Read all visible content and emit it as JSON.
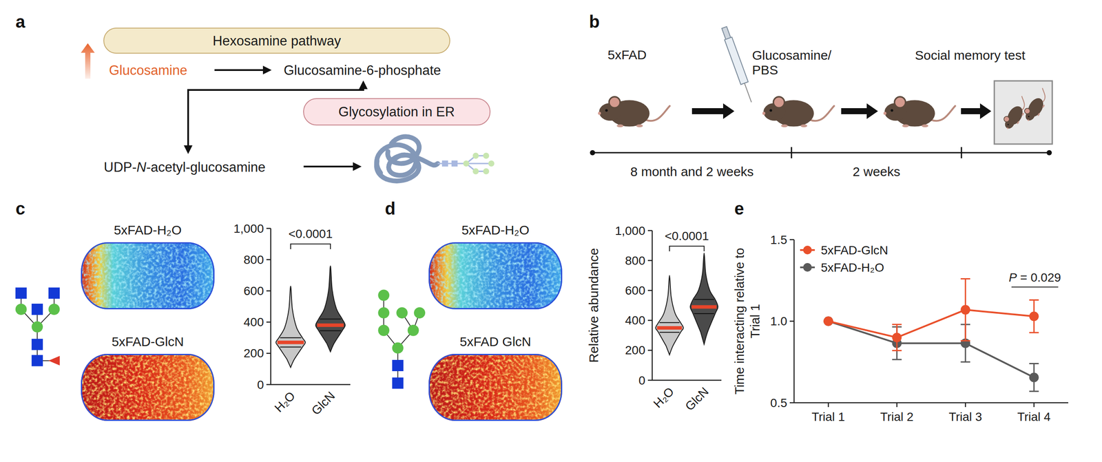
{
  "panels": {
    "a": {
      "letter": "a",
      "pathway": "Hexosamine pathway",
      "glucosamine": "Glucosamine",
      "glucosamine_6_phosphate": "Glucosamine-6-phosphate",
      "glycosylation": "Glycosylation in ER",
      "udp_glcnac": "UDP-N-acetyl-glucosamine"
    },
    "b": {
      "letter": "b",
      "mouse": "5xFAD",
      "treatment": "Glucosamine/PBS",
      "test": "Social memory test",
      "timeline": [
        "8 month and 2 weeks",
        "2 weeks"
      ]
    }
  },
  "chart_data": [
    {
      "type": "violin",
      "panel": "c",
      "image_labels": [
        "5xFAD-H₂O",
        "5xFAD-GlcN"
      ],
      "categories": [
        "H₂O",
        "GlcN"
      ],
      "min": [
        110,
        210
      ],
      "q1": [
        240,
        345
      ],
      "median": [
        270,
        380
      ],
      "q3": [
        300,
        420
      ],
      "max": [
        630,
        760
      ],
      "colors": [
        "#c8c8c8",
        "#4a4a4a"
      ],
      "ylim": [
        0,
        1000
      ],
      "yticks": [
        0,
        200,
        400,
        600,
        800,
        {
          "value": 1000,
          "label": "1,000"
        }
      ],
      "annotation": "<0.0001"
    },
    {
      "type": "violin",
      "panel": "d",
      "image_labels": [
        "5xFAD-H₂O",
        "5xFAD GlcN"
      ],
      "categories": [
        "H₂O",
        "GlcN"
      ],
      "min": [
        170,
        240
      ],
      "q1": [
        320,
        445
      ],
      "median": [
        350,
        490
      ],
      "q3": [
        385,
        540
      ],
      "max": [
        700,
        850
      ],
      "colors": [
        "#c8c8c8",
        "#4a4a4a"
      ],
      "ylim": [
        0,
        1000
      ],
      "yticks": [
        0,
        200,
        400,
        600,
        800,
        {
          "value": 1000,
          "label": "1,000"
        }
      ],
      "ylabel": "Relative abundance",
      "annotation": "<0.0001"
    },
    {
      "type": "line",
      "panel": "e",
      "categories": [
        "Trial 1",
        "Trial 2",
        "Trial 3",
        "Trial 4"
      ],
      "series": [
        {
          "name": "5xFAD-GlcN",
          "color": "#e9502b",
          "marker": "circle",
          "values": [
            1.0,
            0.9,
            1.07,
            1.03
          ],
          "errors": [
            0,
            0.08,
            0.19,
            0.1
          ]
        },
        {
          "name": "5xFAD-H₂O",
          "color": "#5a5a5a",
          "marker": "circle",
          "values": [
            1.0,
            0.865,
            0.865,
            0.655
          ],
          "errors": [
            0,
            0.1,
            0.115,
            0.085
          ]
        }
      ],
      "ylim": [
        0.5,
        1.5
      ],
      "yticks": [
        0.5,
        {
          "value": 1,
          "label": "1.0"
        },
        1.5
      ],
      "ylabel": "Time interacting relative to Trial 1",
      "legend": "top-left",
      "annotation": "P = 0.029"
    }
  ]
}
